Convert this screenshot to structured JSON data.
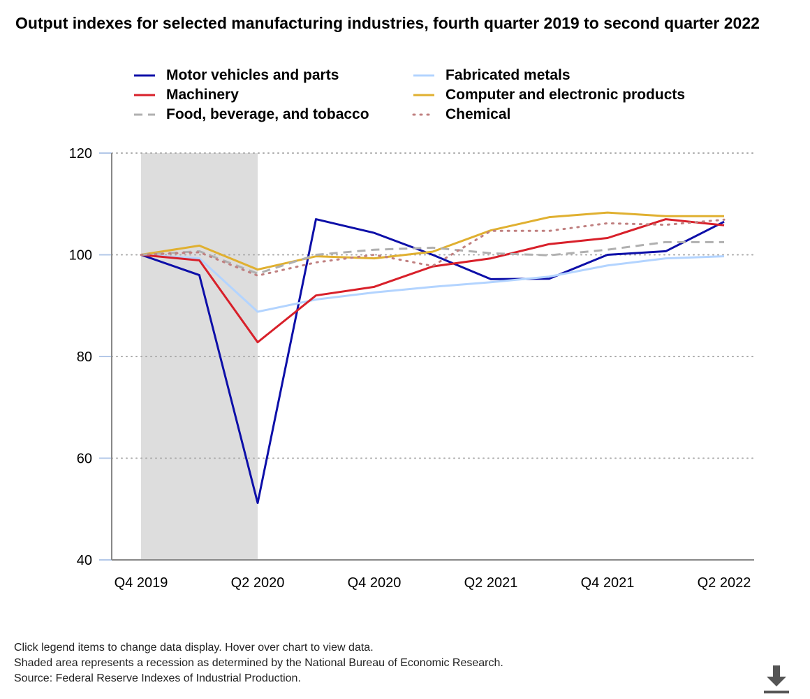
{
  "title": "Output indexes for selected manufacturing industries, fourth quarter 2019 to second quarter 2022",
  "chart_data": {
    "type": "line",
    "title": "Output indexes for selected manufacturing industries, fourth quarter 2019 to second quarter 2022",
    "x": [
      "Q4 2019",
      "Q1 2020",
      "Q2 2020",
      "Q3 2020",
      "Q4 2020",
      "Q1 2021",
      "Q2 2021",
      "Q3 2021",
      "Q4 2021",
      "Q1 2022",
      "Q2 2022"
    ],
    "xtick_labels": [
      "Q4 2019",
      "Q2 2020",
      "Q4 2020",
      "Q2 2021",
      "Q4 2021",
      "Q2 2022"
    ],
    "ylim": [
      40,
      120
    ],
    "yticks": [
      40,
      60,
      80,
      100,
      120
    ],
    "grid": "horizontal dotted",
    "legend_placement": "top",
    "recession_shading": [
      "Q4 2019",
      "Q2 2020"
    ],
    "series": [
      {
        "name": "Motor vehicles and parts",
        "color": "#0d0fa8",
        "style": "solid",
        "values": [
          100,
          96,
          51.2,
          107,
          104.3,
          100,
          95.2,
          95.3,
          100,
          100.7,
          106.5
        ]
      },
      {
        "name": "Fabricated metals",
        "color": "#b3d4ff",
        "style": "solid",
        "values": [
          100,
          99.3,
          88.8,
          91.2,
          92.6,
          93.7,
          94.6,
          95.7,
          97.9,
          99.3,
          99.7
        ]
      },
      {
        "name": "Machinery",
        "color": "#d8202a",
        "style": "solid",
        "values": [
          100,
          98.9,
          82.8,
          92,
          93.7,
          97.7,
          99.3,
          102.1,
          103.3,
          107,
          105.8
        ]
      },
      {
        "name": "Computer and electronic products",
        "color": "#e0b030",
        "style": "solid",
        "values": [
          100,
          101.8,
          97.1,
          99.7,
          99.3,
          100.6,
          104.8,
          107.4,
          108.3,
          107.6,
          107.6
        ]
      },
      {
        "name": "Food, beverage, and tobacco",
        "color": "#b0b0b0",
        "style": "dashed",
        "values": [
          100,
          100.7,
          96.3,
          100,
          101,
          101.4,
          100.3,
          99.9,
          101,
          102.5,
          102.5
        ]
      },
      {
        "name": "Chemical",
        "color": "#c08080",
        "style": "dotted",
        "values": [
          100,
          100.5,
          95.9,
          98.5,
          100,
          97.8,
          104.7,
          104.7,
          106.2,
          105.9,
          106.9
        ]
      }
    ]
  },
  "notes": [
    "Click legend items to change data display. Hover over chart to view data.",
    "Shaded area represents a recession as determined by the National Bureau of Economic Research.",
    "Source: Federal Reserve Indexes of Industrial Production."
  ],
  "download_icon": "download-icon"
}
